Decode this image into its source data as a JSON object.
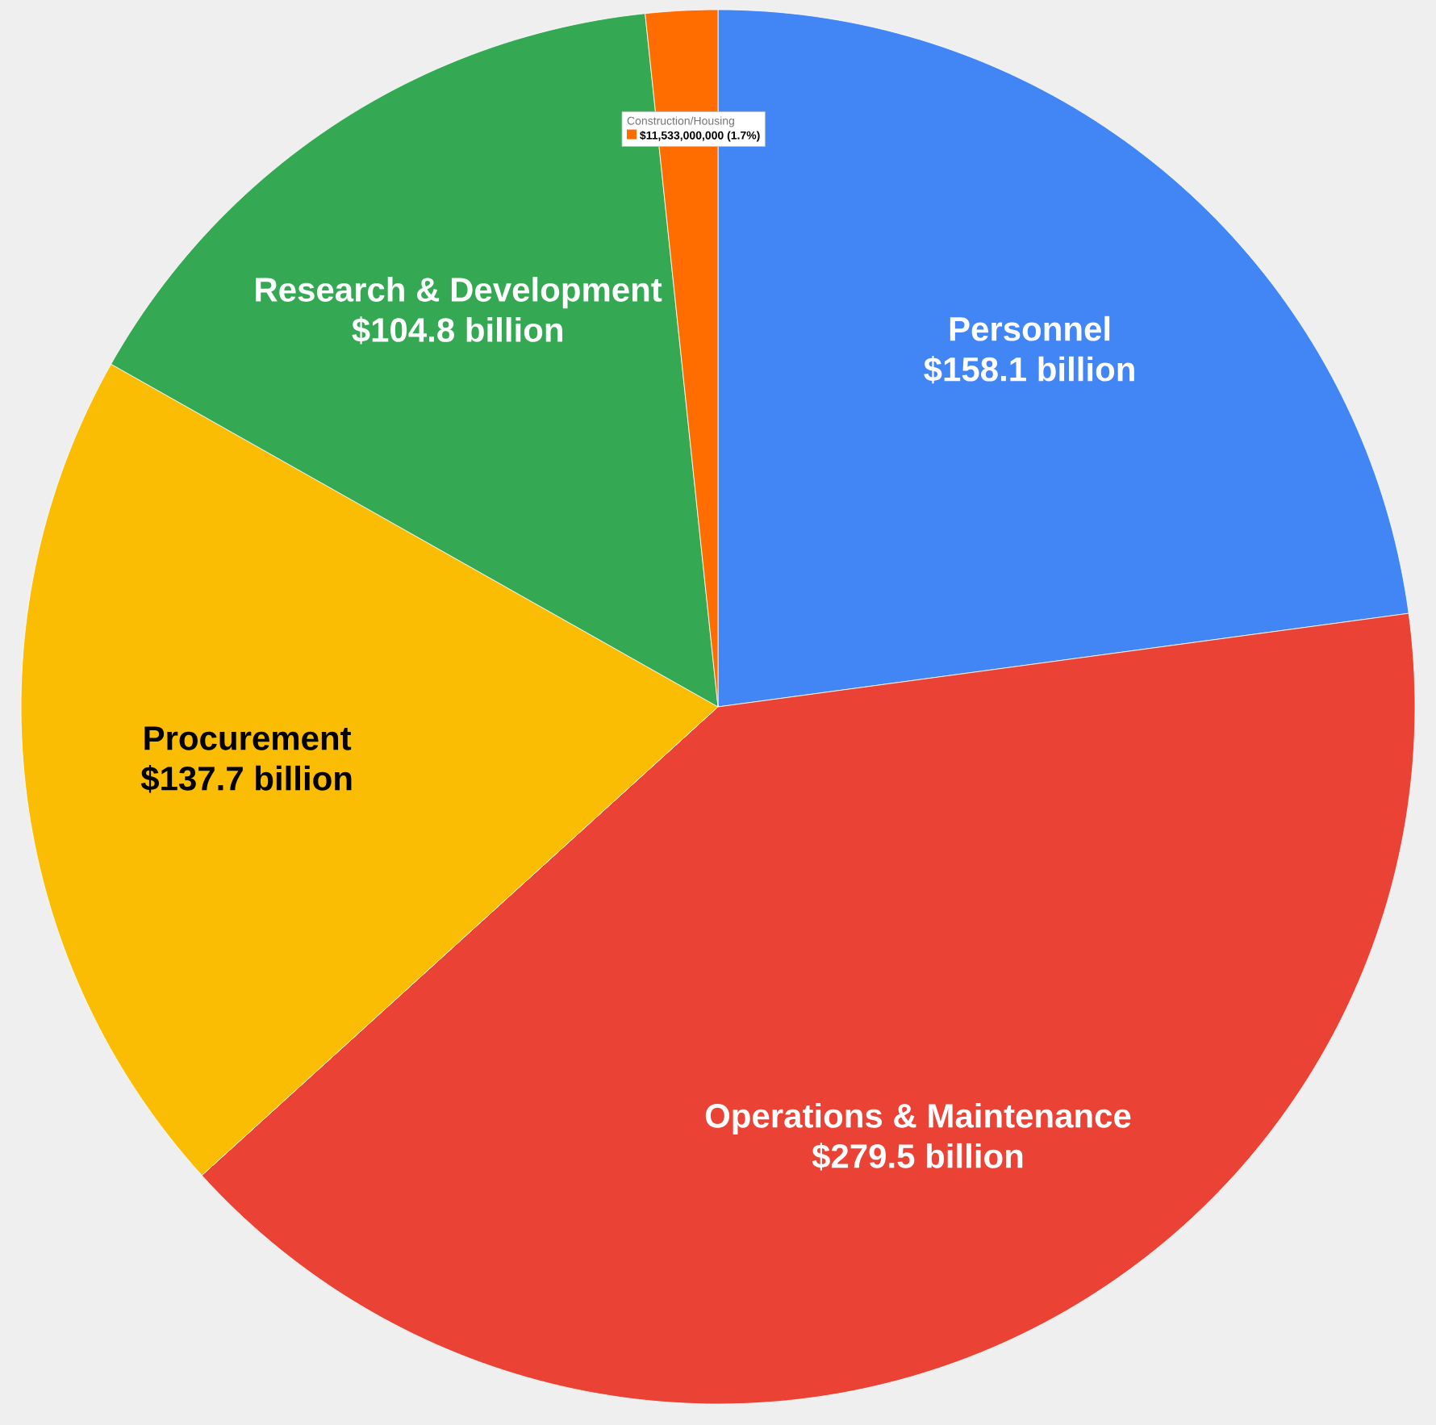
{
  "chart_data": {
    "type": "pie",
    "categories": [
      "Personnel",
      "Operations & Maintenance",
      "Procurement",
      "Research & Development",
      "Construction/Housing"
    ],
    "values": [
      158100000000,
      279500000000,
      137700000000,
      104800000000,
      11533000000
    ],
    "colors": [
      "#4285f4",
      "#ea4335",
      "#fbbc04",
      "#34a853",
      "#ff6d01"
    ],
    "value_labels": [
      "$158.1 billion",
      "$279.5 billion",
      "$137.7 billion",
      "$104.8 billion",
      "$11,533,000,000 (1.7%)"
    ]
  }
}
